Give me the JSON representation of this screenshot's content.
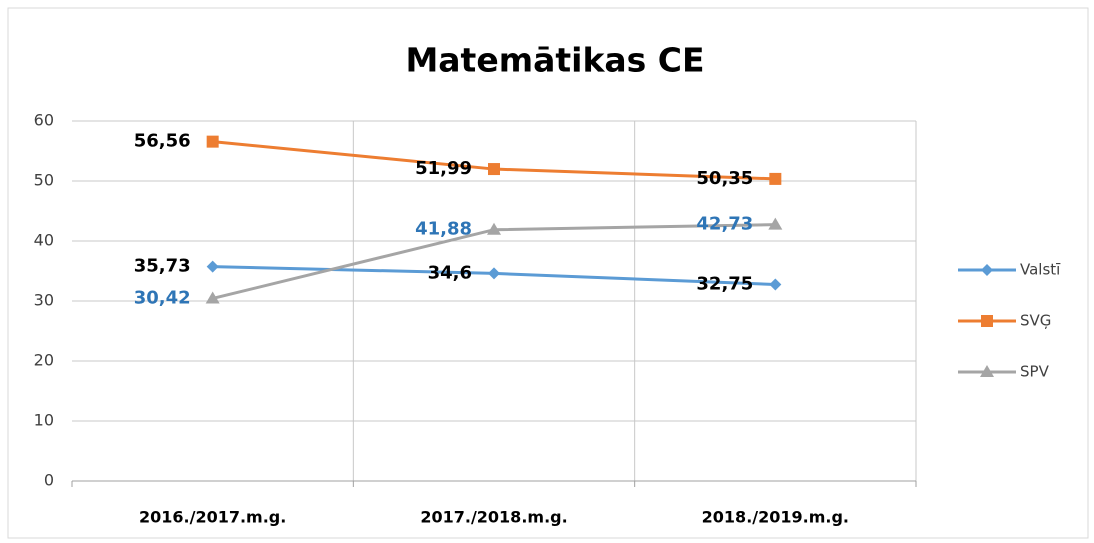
{
  "chart_data": {
    "type": "line",
    "title": "Matemātikas CE",
    "categories": [
      "2016./2017.m.g.",
      "2017./2018.m.g.",
      "2018./2019.m.g."
    ],
    "series": [
      {
        "name": "Valstī",
        "color": "#5b9bd5",
        "marker": "diamond",
        "label_color": "#000000",
        "values": [
          35.73,
          34.6,
          32.75
        ],
        "value_labels": [
          "35,73",
          "34,6",
          "32,75"
        ]
      },
      {
        "name": "SVĢ",
        "color": "#ed7d31",
        "marker": "square",
        "label_color": "#000000",
        "values": [
          56.56,
          51.99,
          50.35
        ],
        "value_labels": [
          "56,56",
          "51,99",
          "50,35"
        ]
      },
      {
        "name": "SPV",
        "color": "#a5a5a5",
        "marker": "triangle",
        "label_color": "#2e75b6",
        "values": [
          30.42,
          41.88,
          42.73
        ],
        "value_labels": [
          "30,42",
          "41,88",
          "42,73"
        ]
      }
    ],
    "ylim": [
      0,
      60
    ],
    "yticks": [
      0,
      10,
      20,
      30,
      40,
      50,
      60
    ],
    "grid": true,
    "legend": "right"
  }
}
